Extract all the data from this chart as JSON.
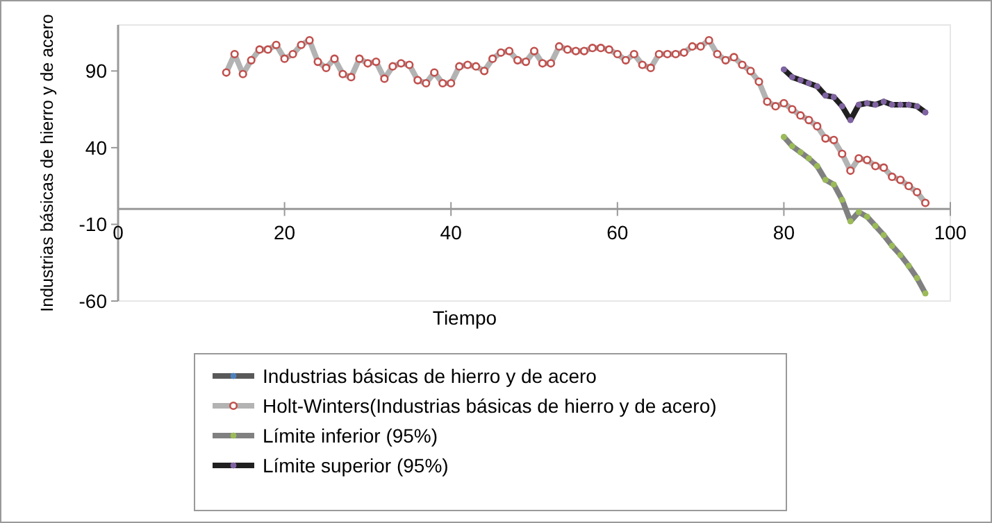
{
  "chart_data": {
    "type": "line",
    "xlabel": "Tiempo",
    "ylabel": "Industrias básicas de hierro y de acero",
    "xlim": [
      0,
      100
    ],
    "xticks": [
      0,
      20,
      40,
      60,
      80,
      100
    ],
    "ylim": [
      -60,
      120
    ],
    "yticks": [
      -60,
      -10,
      40,
      90
    ],
    "grid": false,
    "legend": "bottom",
    "marker": "circle",
    "line_style": "solid",
    "series": [
      {
        "name": "Industrias básicas de hierro y de acero",
        "color": "#4f81bd"
      },
      {
        "name": "Holt-Winters(Industrias básicas de hierro y de acero)",
        "color": "#c0504d",
        "x": [
          13,
          14,
          15,
          16,
          17,
          18,
          19,
          20,
          21,
          22,
          23,
          24,
          25,
          26,
          27,
          28,
          29,
          30,
          31,
          32,
          33,
          34,
          35,
          36,
          37,
          38,
          39,
          40,
          41,
          42,
          43,
          44,
          45,
          46,
          47,
          48,
          49,
          50,
          51,
          52,
          53,
          54,
          55,
          56,
          57,
          58,
          59,
          60,
          61,
          62,
          63,
          64,
          65,
          66,
          67,
          68,
          69,
          70,
          71,
          72,
          73,
          74,
          75,
          76,
          77,
          78,
          79,
          80,
          81,
          82,
          83,
          84,
          85,
          86,
          87,
          88,
          89,
          90,
          91,
          92,
          93,
          94,
          95,
          96,
          97
        ],
        "values": [
          89,
          101,
          88,
          97,
          104,
          104,
          107,
          98,
          101,
          107,
          110,
          96,
          92,
          98,
          88,
          86,
          98,
          95,
          96,
          85,
          93,
          95,
          94,
          84,
          82,
          89,
          82,
          82,
          93,
          94,
          93,
          90,
          98,
          102,
          103,
          97,
          96,
          103,
          95,
          95,
          106,
          104,
          103,
          103,
          105,
          105,
          104,
          101,
          97,
          101,
          94,
          92,
          101,
          101,
          101,
          102,
          106,
          106,
          110,
          101,
          97,
          99,
          94,
          90,
          83,
          70,
          67,
          69,
          65,
          61,
          58,
          54,
          46,
          45,
          36,
          25,
          33,
          32,
          28,
          27,
          21,
          19,
          15,
          11,
          4
        ]
      },
      {
        "name": "Límite inferior (95%)",
        "color": "#9bbb59",
        "x": [
          80,
          81,
          82,
          83,
          84,
          85,
          86,
          87,
          88,
          89,
          90,
          91,
          92,
          93,
          94,
          95,
          96,
          97
        ],
        "values": [
          47,
          41,
          37,
          33,
          28,
          19,
          16,
          6,
          -8,
          -2,
          -5,
          -11,
          -17,
          -24,
          -30,
          -37,
          -45,
          -55
        ]
      },
      {
        "name": "Límite superior (95%)",
        "color": "#8064a2",
        "x": [
          80,
          81,
          82,
          83,
          84,
          85,
          86,
          87,
          88,
          89,
          90,
          91,
          92,
          93,
          94,
          95,
          96,
          97
        ],
        "values": [
          91,
          86,
          84,
          82,
          80,
          74,
          73,
          67,
          58,
          68,
          69,
          68,
          70,
          68,
          68,
          68,
          67,
          63
        ]
      }
    ]
  }
}
